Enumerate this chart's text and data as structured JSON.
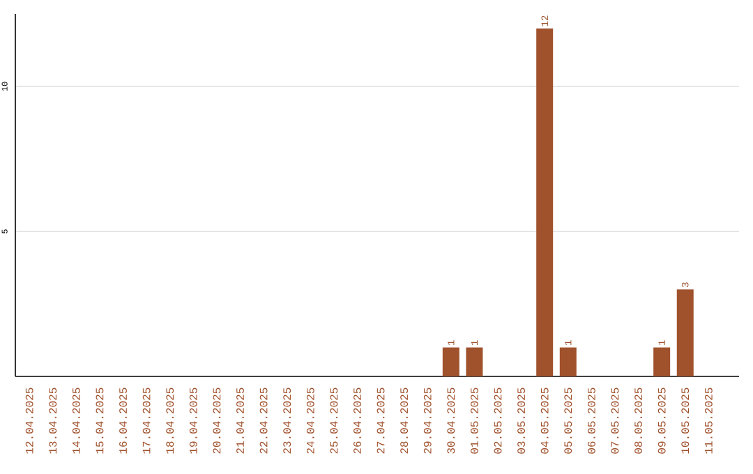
{
  "chart_data": {
    "type": "bar",
    "categories": [
      "12.04.2025",
      "13.04.2025",
      "14.04.2025",
      "15.04.2025",
      "16.04.2025",
      "17.04.2025",
      "18.04.2025",
      "19.04.2025",
      "20.04.2025",
      "21.04.2025",
      "22.04.2025",
      "23.04.2025",
      "24.04.2025",
      "25.04.2025",
      "26.04.2025",
      "27.04.2025",
      "28.04.2025",
      "29.04.2025",
      "30.04.2025",
      "01.05.2025",
      "02.05.2025",
      "03.05.2025",
      "04.05.2025",
      "05.05.2025",
      "06.05.2025",
      "07.05.2025",
      "08.05.2025",
      "09.05.2025",
      "10.05.2025",
      "11.05.2025"
    ],
    "values": [
      0,
      0,
      0,
      0,
      0,
      0,
      0,
      0,
      0,
      0,
      0,
      0,
      0,
      0,
      0,
      0,
      0,
      0,
      1,
      1,
      0,
      0,
      12,
      1,
      0,
      0,
      0,
      1,
      3,
      0
    ],
    "value_labels": [
      null,
      null,
      null,
      null,
      null,
      null,
      null,
      null,
      null,
      null,
      null,
      null,
      null,
      null,
      null,
      null,
      null,
      null,
      "1",
      "1",
      null,
      null,
      "12",
      "1",
      null,
      null,
      null,
      "1",
      "3",
      null
    ],
    "color": "#a0522d",
    "ylim": [
      0,
      12.5
    ],
    "yticks": [
      5,
      10
    ],
    "grid": "y"
  }
}
